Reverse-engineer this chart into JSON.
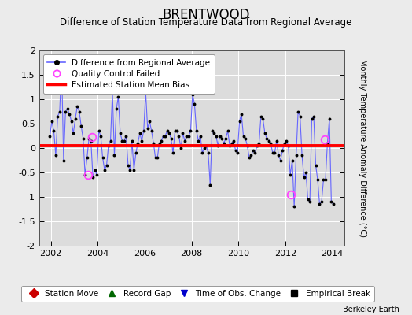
{
  "title": "BRENTWOOD",
  "subtitle": "Difference of Station Temperature Data from Regional Average",
  "ylabel": "Monthly Temperature Anomaly Difference (°C)",
  "xlabel_ticks": [
    2002,
    2004,
    2006,
    2008,
    2010,
    2012,
    2014
  ],
  "yticks": [
    -2,
    -1.5,
    -1,
    -0.5,
    0,
    0.5,
    1,
    1.5,
    2
  ],
  "xlim": [
    2001.5,
    2014.5
  ],
  "ylim": [
    -2,
    2
  ],
  "bias_value": 0.05,
  "bias_color": "#ff0000",
  "line_color": "#6666ff",
  "dot_color": "#000000",
  "qc_failed_color": "#ff44ff",
  "plot_bg_color": "#dcdcdc",
  "fig_bg_color": "#ebebeb",
  "grid_color": "#ffffff",
  "qc_failed_points": [
    [
      2003.583,
      -0.55
    ],
    [
      2003.75,
      0.22
    ],
    [
      2012.25,
      -0.95
    ],
    [
      2013.667,
      0.18
    ]
  ],
  "time_series_x": [
    2001.958,
    2002.042,
    2002.125,
    2002.208,
    2002.292,
    2002.375,
    2002.458,
    2002.542,
    2002.625,
    2002.708,
    2002.792,
    2002.875,
    2002.958,
    2003.042,
    2003.125,
    2003.208,
    2003.292,
    2003.375,
    2003.458,
    2003.542,
    2003.625,
    2003.708,
    2003.792,
    2003.875,
    2003.958,
    2004.042,
    2004.125,
    2004.208,
    2004.292,
    2004.375,
    2004.458,
    2004.542,
    2004.625,
    2004.708,
    2004.792,
    2004.875,
    2004.958,
    2005.042,
    2005.125,
    2005.208,
    2005.292,
    2005.375,
    2005.458,
    2005.542,
    2005.625,
    2005.708,
    2005.792,
    2005.875,
    2005.958,
    2006.042,
    2006.125,
    2006.208,
    2006.292,
    2006.375,
    2006.458,
    2006.542,
    2006.625,
    2006.708,
    2006.792,
    2006.875,
    2006.958,
    2007.042,
    2007.125,
    2007.208,
    2007.292,
    2007.375,
    2007.458,
    2007.542,
    2007.625,
    2007.708,
    2007.792,
    2007.875,
    2007.958,
    2008.042,
    2008.125,
    2008.208,
    2008.292,
    2008.375,
    2008.458,
    2008.542,
    2008.625,
    2008.708,
    2008.792,
    2008.875,
    2008.958,
    2009.042,
    2009.125,
    2009.208,
    2009.292,
    2009.375,
    2009.458,
    2009.542,
    2009.625,
    2009.708,
    2009.792,
    2009.875,
    2009.958,
    2010.042,
    2010.125,
    2010.208,
    2010.292,
    2010.375,
    2010.458,
    2010.542,
    2010.625,
    2010.708,
    2010.792,
    2010.875,
    2010.958,
    2011.042,
    2011.125,
    2011.208,
    2011.292,
    2011.375,
    2011.458,
    2011.542,
    2011.625,
    2011.708,
    2011.792,
    2011.875,
    2011.958,
    2012.042,
    2012.125,
    2012.208,
    2012.292,
    2012.375,
    2012.458,
    2012.542,
    2012.625,
    2012.708,
    2012.792,
    2012.875,
    2012.958,
    2013.042,
    2013.125,
    2013.208,
    2013.292,
    2013.375,
    2013.458,
    2013.542,
    2013.625,
    2013.708,
    2013.792,
    2013.875,
    2013.958,
    2014.042
  ],
  "time_series_y": [
    0.25,
    0.55,
    0.35,
    -0.15,
    0.65,
    0.75,
    1.75,
    -0.25,
    0.75,
    0.8,
    0.7,
    0.55,
    0.3,
    0.6,
    0.85,
    0.75,
    0.45,
    0.2,
    -0.55,
    -0.2,
    0.2,
    0.15,
    -0.6,
    -0.45,
    -0.55,
    0.35,
    0.25,
    -0.2,
    -0.45,
    -0.35,
    0.05,
    0.15,
    1.15,
    -0.15,
    0.8,
    1.05,
    0.3,
    0.15,
    0.15,
    0.25,
    -0.35,
    -0.45,
    0.15,
    -0.45,
    -0.1,
    0.1,
    0.3,
    0.15,
    0.35,
    1.15,
    0.4,
    0.55,
    0.35,
    0.1,
    -0.2,
    -0.2,
    0.1,
    0.15,
    0.25,
    0.25,
    0.35,
    0.3,
    0.2,
    -0.1,
    0.35,
    0.35,
    0.25,
    0.0,
    0.3,
    0.15,
    0.25,
    0.25,
    0.35,
    1.1,
    0.9,
    0.35,
    0.15,
    0.25,
    -0.1,
    0.0,
    0.05,
    -0.1,
    -0.75,
    0.35,
    0.3,
    0.25,
    0.05,
    0.25,
    0.2,
    0.1,
    0.2,
    0.35,
    0.05,
    0.1,
    0.15,
    -0.05,
    -0.1,
    0.55,
    0.7,
    0.25,
    0.2,
    0.05,
    -0.2,
    -0.15,
    -0.05,
    -0.1,
    0.05,
    0.1,
    0.65,
    0.6,
    0.3,
    0.2,
    0.15,
    0.1,
    -0.1,
    -0.1,
    0.15,
    -0.15,
    -0.25,
    -0.05,
    0.1,
    0.15,
    0.05,
    -0.55,
    -0.25,
    -1.2,
    -0.15,
    0.75,
    0.65,
    -0.15,
    -0.6,
    -0.5,
    -1.05,
    -1.1,
    0.6,
    0.65,
    -0.35,
    -0.65,
    -1.15,
    -1.1,
    -0.65,
    -0.65,
    0.1,
    0.6,
    -1.1,
    -1.15
  ],
  "bottom_legend": [
    {
      "label": "Station Move",
      "color": "#cc0000",
      "marker": "D"
    },
    {
      "label": "Record Gap",
      "color": "#006600",
      "marker": "^"
    },
    {
      "label": "Time of Obs. Change",
      "color": "#0000cc",
      "marker": "v"
    },
    {
      "label": "Empirical Break",
      "color": "#000000",
      "marker": "s"
    }
  ],
  "font_size_title": 12,
  "font_size_subtitle": 8.5,
  "font_size_axis": 8,
  "font_size_legend": 7.5,
  "font_size_ylabel": 7
}
